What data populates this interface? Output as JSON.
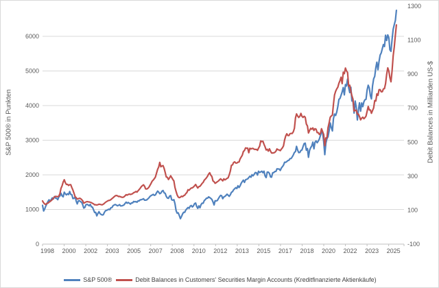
{
  "colors": {
    "series_blue": "#4F81BD",
    "series_red": "#C0504D",
    "gridline": "#D9D9D9",
    "axis_line": "#BFBFBF",
    "tick_text": "#595959",
    "legend_text": "#404040",
    "background": "#FFFFFF"
  },
  "left_axis_title": "S&P 500® in Punkten",
  "right_axis_title": "Debit Balances in Milliarden US-$",
  "legend": {
    "items": [
      {
        "label": "S&P 500®",
        "color": "#4F81BD"
      },
      {
        "label": "Debit Balances in Customers' Securities Margin Accounts (Kreditfinanzierte Aktienkäufe)",
        "color": "#C0504D"
      }
    ]
  },
  "chart_data": {
    "type": "line",
    "title": "",
    "grid": "horizontal",
    "legend_position": "bottom",
    "x_unit": "monthly, decimal years",
    "x_start_decimal_year": 1998.5,
    "x_end_decimal_year": 2025.67,
    "x_step_months": 1,
    "x_axis": {
      "labels": [
        "1998",
        "2000",
        "2002",
        "2003",
        "2005",
        "2007",
        "2008",
        "2010",
        "2012",
        "2013",
        "2015",
        "2017",
        "2018",
        "2020",
        "2022",
        "2023",
        "2025"
      ]
    },
    "left_axis": {
      "title": "S&P 500® in Punkten",
      "min": 0,
      "max": 6860,
      "ticks": [
        0,
        1000,
        2000,
        3000,
        4000,
        5000,
        6000
      ]
    },
    "right_axis": {
      "title": "Debit Balances in Milliarden US-$",
      "min": -100,
      "max": 1300,
      "ticks": [
        -100,
        100,
        300,
        500,
        700,
        900,
        1100,
        1300
      ]
    },
    "series": [
      {
        "name": "S&P 500®",
        "axis": "left",
        "color": "#4F81BD",
        "values": [
          1120,
          957,
          1017,
          1098,
          1163,
          1229,
          1280,
          1238,
          1286,
          1335,
          1302,
          1373,
          1329,
          1320,
          1283,
          1363,
          1389,
          1469,
          1394,
          1366,
          1499,
          1452,
          1421,
          1455,
          1431,
          1518,
          1436,
          1429,
          1315,
          1320,
          1366,
          1240,
          1160,
          1249,
          1256,
          1224,
          1211,
          1134,
          1041,
          1060,
          1139,
          1148,
          1130,
          1107,
          1147,
          1077,
          1067,
          990,
          912,
          916,
          815,
          886,
          936,
          880,
          856,
          841,
          848,
          917,
          964,
          975,
          990,
          1008,
          996,
          1051,
          1058,
          1112,
          1131,
          1145,
          1126,
          1107,
          1121,
          1141,
          1102,
          1104,
          1115,
          1130,
          1174,
          1212,
          1181,
          1204,
          1181,
          1157,
          1192,
          1191,
          1234,
          1220,
          1229,
          1207,
          1249,
          1248,
          1280,
          1281,
          1295,
          1311,
          1270,
          1270,
          1277,
          1304,
          1336,
          1378,
          1401,
          1418,
          1438,
          1407,
          1421,
          1482,
          1531,
          1503,
          1455,
          1474,
          1527,
          1549,
          1481,
          1468,
          1379,
          1331,
          1323,
          1386,
          1400,
          1280,
          1267,
          1283,
          1166,
          969,
          896,
          903,
          826,
          735,
          798,
          873,
          919,
          919,
          987,
          1021,
          1057,
          1036,
          1096,
          1115,
          1074,
          1104,
          1169,
          1187,
          1089,
          1031,
          1102,
          1049,
          1141,
          1183,
          1181,
          1258,
          1286,
          1327,
          1326,
          1364,
          1345,
          1321,
          1292,
          1219,
          1131,
          1253,
          1247,
          1258,
          1312,
          1366,
          1408,
          1398,
          1310,
          1362,
          1379,
          1407,
          1441,
          1412,
          1380,
          1426,
          1498,
          1515,
          1569,
          1598,
          1631,
          1606,
          1686,
          1633,
          1682,
          1757,
          1806,
          1848,
          1783,
          1859,
          1872,
          1884,
          1924,
          1960,
          1931,
          2003,
          1972,
          2018,
          2068,
          2059,
          1995,
          2105,
          2068,
          2086,
          2107,
          2063,
          2104,
          1972,
          1920,
          2079,
          2080,
          2044,
          1940,
          1932,
          2060,
          2065,
          2097,
          2099,
          2174,
          2171,
          2168,
          2126,
          2199,
          2239,
          2279,
          2364,
          2363,
          2384,
          2412,
          2423,
          2470,
          2472,
          2519,
          2575,
          2648,
          2674,
          2824,
          2714,
          2641,
          2648,
          2705,
          2718,
          2816,
          2902,
          2914,
          2712,
          2760,
          2507,
          2704,
          2784,
          2834,
          2946,
          2752,
          2942,
          2980,
          2926,
          2977,
          3038,
          3141,
          3231,
          3226,
          2954,
          2585,
          2912,
          3044,
          3100,
          3271,
          3500,
          3363,
          3270,
          3622,
          3756,
          3714,
          3811,
          3973,
          4181,
          4204,
          4298,
          4395,
          4523,
          4308,
          4605,
          4567,
          4766,
          4516,
          4374,
          4530,
          4132,
          4132,
          3785,
          4130,
          3955,
          3586,
          3872,
          4080,
          3840,
          4077,
          3970,
          4109,
          4169,
          4180,
          4450,
          4589,
          4508,
          4288,
          4194,
          4568,
          4770,
          4846,
          5096,
          5254,
          5036,
          5278,
          5460,
          5522,
          5648,
          5762,
          5705,
          6032,
          5882,
          6041,
          5955,
          5612,
          5569,
          5912,
          6205,
          6339,
          6460,
          6750
        ]
      },
      {
        "name": "Debit Balances in Customers' Securities Margin Accounts (Kreditfinanzierte Aktienkäufe)",
        "axis": "right",
        "color": "#C0504D",
        "values": [
          154,
          143,
          136,
          133,
          140,
          141,
          147,
          151,
          156,
          162,
          170,
          178,
          181,
          180,
          179,
          182,
          196,
          228,
          243,
          265,
          279,
          262,
          251,
          252,
          245,
          250,
          250,
          233,
          218,
          199,
          179,
          173,
          165,
          167,
          170,
          168,
          162,
          155,
          141,
          144,
          148,
          150,
          149,
          148,
          146,
          144,
          140,
          137,
          131,
          132,
          130,
          132,
          135,
          134,
          132,
          131,
          135,
          140,
          146,
          150,
          154,
          157,
          158,
          162,
          168,
          173,
          179,
          184,
          186,
          184,
          180,
          181,
          178,
          176,
          175,
          178,
          184,
          191,
          188,
          192,
          194,
          192,
          194,
          197,
          203,
          205,
          210,
          206,
          214,
          221,
          229,
          238,
          244,
          249,
          240,
          225,
          224,
          228,
          235,
          246,
          258,
          270,
          277,
          285,
          295,
          318,
          340,
          353,
          381,
          355,
          360,
          362,
          345,
          322,
          295,
          293,
          280,
          290,
          302,
          292,
          281,
          272,
          233,
          210,
          190,
          177,
          173,
          176,
          182,
          179,
          185,
          188,
          197,
          204,
          220,
          217,
          224,
          230,
          231,
          236,
          243,
          251,
          240,
          230,
          238,
          240,
          248,
          257,
          263,
          276,
          283,
          290,
          300,
          312,
          320,
          306,
          298,
          272,
          267,
          258,
          262,
          267,
          271,
          278,
          284,
          279,
          272,
          284,
          278,
          282,
          287,
          290,
          308,
          330,
          364,
          366,
          380,
          384,
          377,
          377,
          382,
          383,
          401,
          412,
          423,
          445,
          451,
          466,
          464,
          465,
          438,
          464,
          460,
          463,
          463,
          458,
          457,
          457,
          452,
          465,
          476,
          507,
          503,
          505,
          487,
          473,
          454,
          458,
          447,
          461,
          447,
          436,
          436,
          437,
          440,
          447,
          460,
          455,
          454,
          450,
          459,
          467,
          478,
          513,
          536,
          549,
          539,
          539,
          550,
          551,
          551,
          561,
          581,
          643,
          666,
          654,
          645,
          652,
          669,
          652,
          645,
          652,
          646,
          607,
          595,
          554,
          568,
          581,
          576,
          584,
          569,
          579,
          576,
          556,
          556,
          545,
          552,
          579,
          562,
          545,
          479,
          525,
          525,
          585,
          613,
          646,
          654,
          659,
          722,
          778,
          799,
          813,
          823,
          847,
          861,
          882,
          844,
          911,
          903,
          936,
          919,
          910,
          830,
          835,
          800,
          773,
          753,
          683,
          687,
          688,
          664,
          665,
          651,
          631,
          641,
          647,
          638,
          644,
          653,
          681,
          710,
          689,
          689,
          670,
          686,
          701,
          745,
          742,
          784,
          775,
          809,
          809,
          796,
          797,
          813,
          815,
          844,
          899,
          937,
          918,
          880,
          855,
          920,
          1008,
          1060,
          1130,
          1190
        ]
      }
    ]
  }
}
